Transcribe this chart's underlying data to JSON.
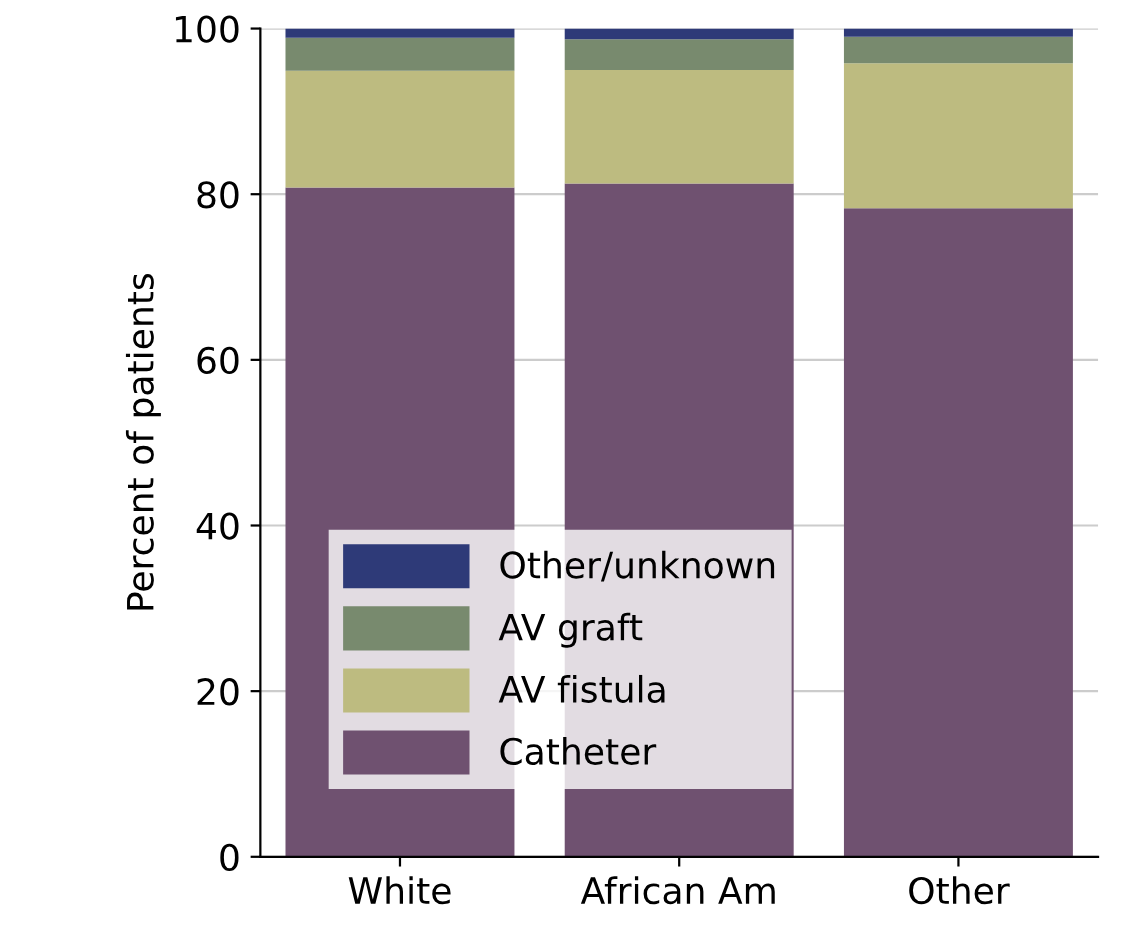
{
  "chart_data": {
    "type": "bar",
    "stacked": true,
    "ylabel": "Percent of patients",
    "categories": [
      "White",
      "African Am",
      "Other"
    ],
    "series": [
      {
        "name": "Catheter",
        "color": "#6f5170",
        "values": [
          80.8,
          81.3,
          78.3
        ]
      },
      {
        "name": "AV fistula",
        "color": "#bdbb80",
        "values": [
          14.1,
          13.7,
          17.5
        ]
      },
      {
        "name": "AV graft",
        "color": "#788a6e",
        "values": [
          4.0,
          3.7,
          3.2
        ]
      },
      {
        "name": "Other/unknown",
        "color": "#2e3a78",
        "values": [
          1.1,
          1.3,
          1.0
        ]
      }
    ],
    "ylim": [
      0,
      100
    ],
    "yticks": [
      0,
      20,
      40,
      60,
      80,
      100
    ],
    "grid": "y",
    "legend": "bottom left"
  }
}
